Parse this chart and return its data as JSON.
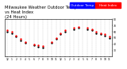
{
  "title": "Milwaukee Weather Outdoor Temperature\nvs Heat Index\n(24 Hours)",
  "title_fontsize": 3.8,
  "background_color": "#ffffff",
  "temp_color": "#000000",
  "heat_color": "#ff0000",
  "legend_temp_color": "#0000ff",
  "legend_heat_color": "#ff0000",
  "ylim": [
    20,
    80
  ],
  "xlim": [
    -0.5,
    23.5
  ],
  "x_ticks": [
    0,
    1,
    2,
    3,
    4,
    5,
    6,
    7,
    8,
    9,
    10,
    11,
    12,
    13,
    14,
    15,
    16,
    17,
    18,
    19,
    20,
    21,
    22,
    23
  ],
  "x_tick_labels": [
    "12",
    "1",
    "2",
    "3",
    "4",
    "5",
    "6",
    "7",
    "8",
    "9",
    "10",
    "11",
    "12",
    "1",
    "2",
    "3",
    "4",
    "5",
    "6",
    "7",
    "8",
    "9",
    "10",
    "11"
  ],
  "y_ticks": [
    30,
    40,
    50,
    60,
    70,
    80
  ],
  "y_tick_labels": [
    "30",
    "40",
    "50",
    "60",
    "70",
    "80"
  ],
  "temp_data_x": [
    0,
    1,
    2,
    3,
    4,
    6,
    7,
    8,
    10,
    11,
    12,
    13,
    15,
    16,
    18,
    19,
    20,
    21,
    22,
    23
  ],
  "temp_data_y": [
    60,
    58,
    52,
    46,
    42,
    38,
    36,
    35,
    42,
    48,
    56,
    60,
    64,
    66,
    64,
    62,
    58,
    56,
    54,
    50
  ],
  "heat_data_x": [
    0,
    1,
    2,
    3,
    4,
    6,
    7,
    8,
    10,
    11,
    12,
    13,
    15,
    16,
    18,
    19,
    20,
    21,
    22,
    23
  ],
  "heat_data_y": [
    62,
    60,
    54,
    48,
    44,
    40,
    38,
    37,
    44,
    50,
    58,
    62,
    66,
    68,
    66,
    64,
    60,
    58,
    56,
    52
  ],
  "grid_color": "#aaaaaa",
  "marker_size": 3,
  "legend_label_temp": "Outdoor Temp",
  "legend_label_heat": "Heat Index",
  "legend_fontsize": 3.0
}
